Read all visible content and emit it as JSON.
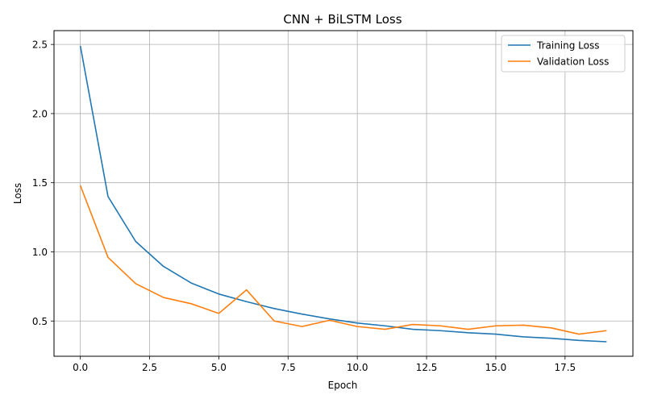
{
  "chart_data": {
    "type": "line",
    "title": "CNN + BiLSTM Loss",
    "xlabel": "Epoch",
    "ylabel": "Loss",
    "xlim": [
      -0.95,
      19.95
    ],
    "ylim": [
      0.245,
      2.6
    ],
    "xticks": [
      0.0,
      2.5,
      5.0,
      7.5,
      10.0,
      12.5,
      15.0,
      17.5
    ],
    "xtick_labels": [
      "0.0",
      "2.5",
      "5.0",
      "7.5",
      "10.0",
      "12.5",
      "15.0",
      "17.5"
    ],
    "yticks": [
      0.5,
      1.0,
      1.5,
      2.0,
      2.5
    ],
    "ytick_labels": [
      "0.5",
      "1.0",
      "1.5",
      "2.0",
      "2.5"
    ],
    "grid": true,
    "legend_position": "top-right",
    "x": [
      0,
      1,
      2,
      3,
      4,
      5,
      6,
      7,
      8,
      9,
      10,
      11,
      12,
      13,
      14,
      15,
      16,
      17,
      18,
      19
    ],
    "series": [
      {
        "name": "Training Loss",
        "color": "#1f77b4",
        "values": [
          2.49,
          1.4,
          1.075,
          0.895,
          0.775,
          0.695,
          0.64,
          0.59,
          0.55,
          0.515,
          0.485,
          0.465,
          0.44,
          0.43,
          0.415,
          0.405,
          0.385,
          0.375,
          0.36,
          0.35
        ]
      },
      {
        "name": "Validation Loss",
        "color": "#ff7f0e",
        "values": [
          1.48,
          0.96,
          0.77,
          0.67,
          0.625,
          0.555,
          0.725,
          0.5,
          0.46,
          0.505,
          0.46,
          0.44,
          0.475,
          0.465,
          0.44,
          0.465,
          0.47,
          0.45,
          0.405,
          0.43
        ]
      }
    ]
  }
}
